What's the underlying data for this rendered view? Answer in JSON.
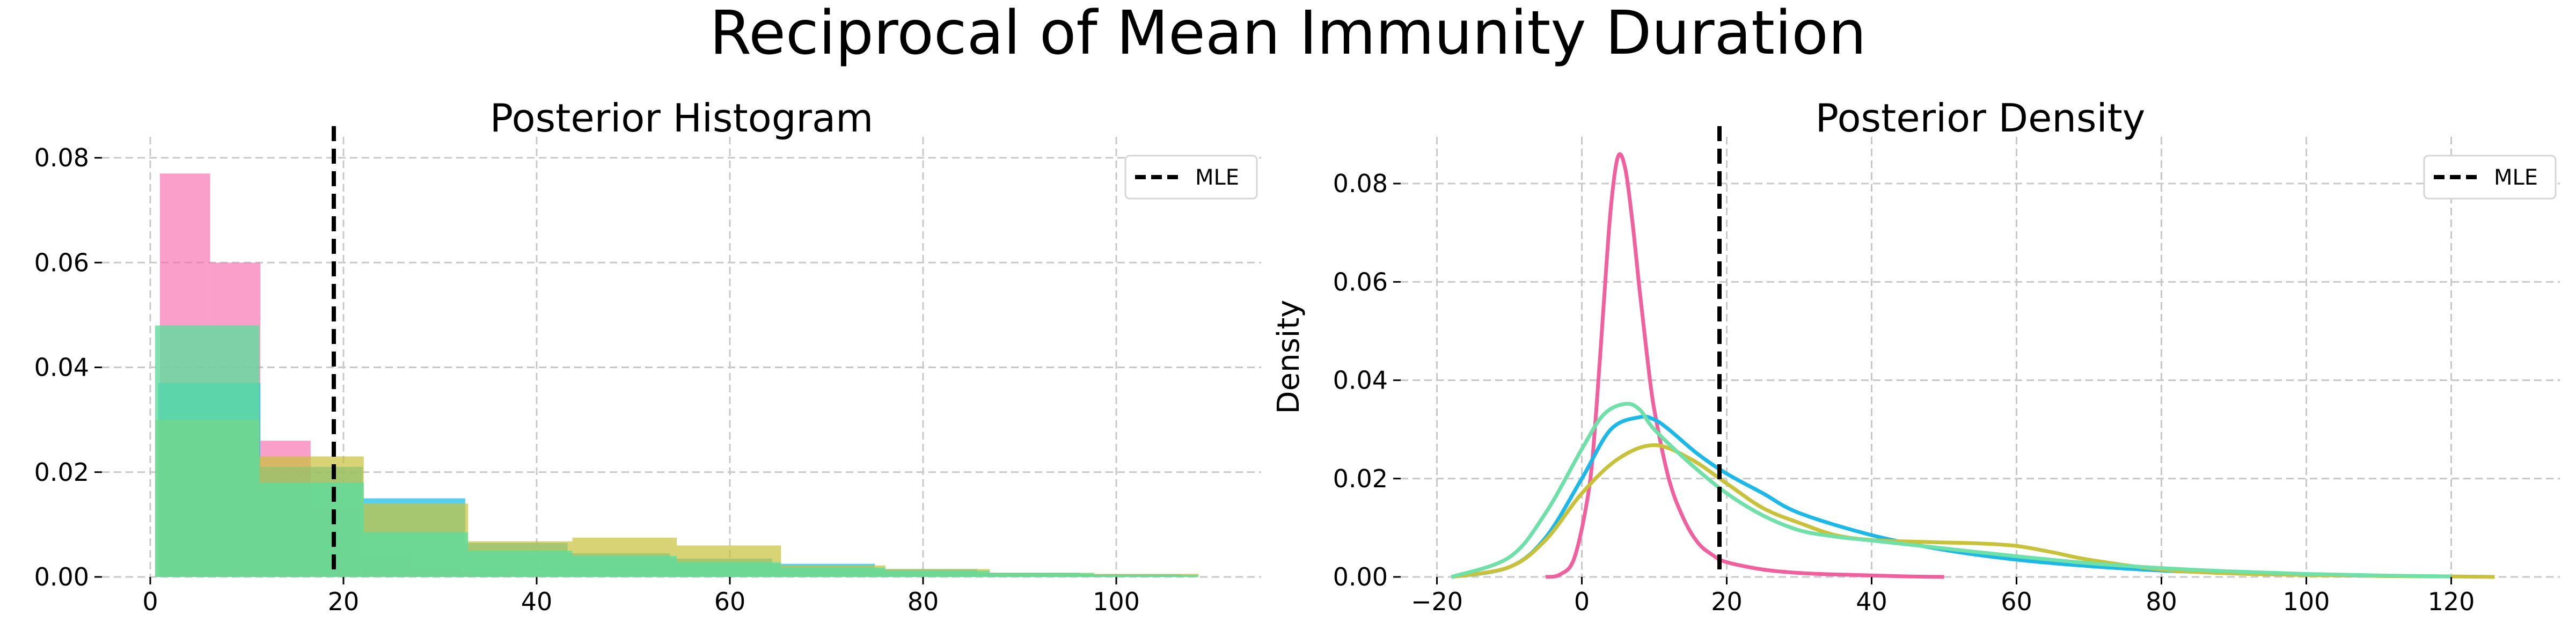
{
  "figure": {
    "title": "Reciprocal of Mean Immunity Duration"
  },
  "chart_data": [
    {
      "type": "bar",
      "title": "Posterior Histogram",
      "xlabel": "",
      "ylabel": "",
      "xlim": [
        -5,
        115
      ],
      "ylim": [
        0,
        0.084
      ],
      "xticks": [
        0,
        20,
        40,
        60,
        80,
        100
      ],
      "yticks": [
        0.0,
        0.02,
        0.04,
        0.06,
        0.08
      ],
      "ytick_labels": [
        "0.00",
        "0.02",
        "0.04",
        "0.06",
        "0.08"
      ],
      "grid": true,
      "legend_position": "top-right",
      "reference_line": {
        "label": "MLE",
        "x": 19,
        "style": "dashed",
        "color": "#000000"
      },
      "series": [
        {
          "color": "#f86aae",
          "opacity": 0.65,
          "bins": [
            [
              1,
              6.2,
              0.077
            ],
            [
              6.2,
              11.4,
              0.06
            ],
            [
              11.4,
              16.6,
              0.026
            ],
            [
              16.6,
              21.8,
              0.013
            ],
            [
              21.8,
              27,
              0.004
            ],
            [
              27,
              32.2,
              0.0015
            ],
            [
              32.2,
              37.4,
              0.0008
            ],
            [
              37.4,
              42.6,
              0.0004
            ],
            [
              42.6,
              47.8,
              0.0002
            ]
          ]
        },
        {
          "color": "#1fbfe9",
          "opacity": 0.75,
          "bins": [
            [
              0.8,
              11.4,
              0.037
            ],
            [
              11.4,
              22,
              0.021
            ],
            [
              22,
              32.6,
              0.015
            ],
            [
              32.6,
              43.2,
              0.0065
            ],
            [
              43.2,
              53.8,
              0.0045
            ],
            [
              53.8,
              64.4,
              0.0035
            ],
            [
              64.4,
              75,
              0.0025
            ],
            [
              75,
              85.6,
              0.0015
            ],
            [
              85.6,
              96.2,
              0.0008
            ],
            [
              96.2,
              106.8,
              0.0005
            ]
          ]
        },
        {
          "color": "#c8c23a",
          "opacity": 0.7,
          "bins": [
            [
              0.5,
              11.3,
              0.03
            ],
            [
              11.3,
              22.1,
              0.023
            ],
            [
              22.1,
              32.9,
              0.014
            ],
            [
              32.9,
              43.7,
              0.0068
            ],
            [
              43.7,
              54.5,
              0.0075
            ],
            [
              54.5,
              65.3,
              0.006
            ],
            [
              65.3,
              76.1,
              0.0022
            ],
            [
              76.1,
              86.9,
              0.0015
            ],
            [
              86.9,
              97.7,
              0.0008
            ],
            [
              97.7,
              108.5,
              0.0006
            ]
          ]
        },
        {
          "color": "#5fdc9c",
          "opacity": 0.8,
          "bins": [
            [
              0.5,
              11.3,
              0.048
            ],
            [
              11.3,
              22.1,
              0.018
            ],
            [
              22.1,
              32.9,
              0.0085
            ],
            [
              32.9,
              43.7,
              0.005
            ],
            [
              43.7,
              54.5,
              0.004
            ],
            [
              54.5,
              65.3,
              0.0028
            ],
            [
              65.3,
              76.1,
              0.0018
            ],
            [
              76.1,
              86.9,
              0.0012
            ],
            [
              86.9,
              97.7,
              0.0007
            ],
            [
              97.7,
              108.5,
              0.0004
            ]
          ]
        }
      ]
    },
    {
      "type": "line",
      "title": "Posterior Density",
      "xlabel": "",
      "ylabel": "Density",
      "xlim": [
        -25,
        135
      ],
      "ylim": [
        0,
        0.0895
      ],
      "xticks": [
        -20,
        0,
        20,
        40,
        60,
        80,
        100,
        120
      ],
      "xtick_labels": [
        "−20",
        "0",
        "20",
        "40",
        "60",
        "80",
        "100",
        "120"
      ],
      "yticks": [
        0.0,
        0.02,
        0.04,
        0.06,
        0.08
      ],
      "ytick_labels": [
        "0.00",
        "0.02",
        "0.04",
        "0.06",
        "0.08"
      ],
      "grid": true,
      "legend_position": "top-right",
      "reference_line": {
        "label": "MLE",
        "x": 19,
        "style": "dashed",
        "color": "#000000"
      },
      "series": [
        {
          "color": "#f0609e",
          "x": [
            -5,
            -3,
            -1,
            1,
            2,
            3,
            4,
            5,
            6,
            7,
            8,
            9,
            10,
            12,
            14,
            16,
            18,
            20,
            25,
            30,
            35,
            40,
            45,
            50
          ],
          "y": [
            0,
            0.0005,
            0.004,
            0.018,
            0.034,
            0.055,
            0.075,
            0.0855,
            0.083,
            0.072,
            0.058,
            0.045,
            0.034,
            0.02,
            0.012,
            0.007,
            0.0045,
            0.003,
            0.0015,
            0.0008,
            0.0005,
            0.0003,
            0.0001,
            0
          ]
        },
        {
          "color": "#1bb8e8",
          "x": [
            -18,
            -10,
            -5,
            0,
            4,
            8,
            10,
            12,
            16,
            20,
            25,
            30,
            40,
            50,
            60,
            70,
            80,
            90,
            100,
            110,
            120
          ],
          "y": [
            0,
            0.002,
            0.008,
            0.02,
            0.03,
            0.0325,
            0.032,
            0.03,
            0.025,
            0.021,
            0.017,
            0.013,
            0.0085,
            0.0055,
            0.0035,
            0.0022,
            0.0013,
            0.0008,
            0.0004,
            0.0002,
            0.0001
          ]
        },
        {
          "color": "#c8c23a",
          "x": [
            -18,
            -10,
            -5,
            0,
            5,
            10,
            15,
            20,
            25,
            30,
            35,
            40,
            45,
            50,
            55,
            60,
            65,
            70,
            80,
            90,
            100,
            110,
            120,
            126
          ],
          "y": [
            0,
            0.002,
            0.0075,
            0.017,
            0.024,
            0.0268,
            0.024,
            0.019,
            0.014,
            0.011,
            0.0085,
            0.0075,
            0.0072,
            0.007,
            0.0068,
            0.0063,
            0.005,
            0.0035,
            0.0015,
            0.0007,
            0.0004,
            0.0002,
            0.0001,
            0
          ]
        },
        {
          "color": "#6ee0a8",
          "x": [
            -18,
            -10,
            -5,
            0,
            3,
            6,
            8,
            10,
            15,
            20,
            25,
            30,
            35,
            40,
            50,
            60,
            70,
            80,
            90,
            100,
            110,
            120
          ],
          "y": [
            0,
            0.004,
            0.013,
            0.026,
            0.033,
            0.0352,
            0.034,
            0.03,
            0.023,
            0.017,
            0.0125,
            0.0095,
            0.0082,
            0.0074,
            0.0058,
            0.0042,
            0.0028,
            0.0018,
            0.0011,
            0.0006,
            0.0003,
            0.0001
          ]
        }
      ]
    }
  ]
}
